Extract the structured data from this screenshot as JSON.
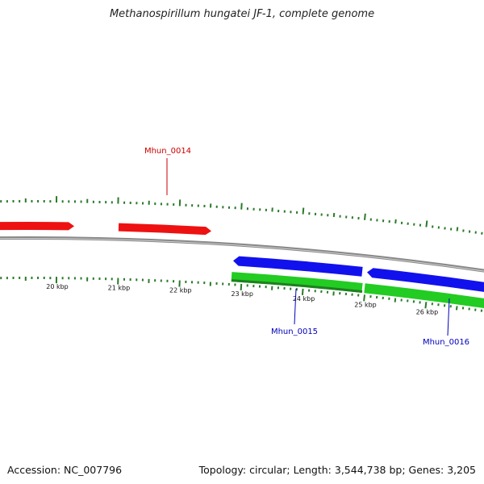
{
  "title": "Methanospirillum hungatei JF-1, complete genome",
  "accession": "Accession: NC_007796",
  "topology": "Topology: circular; Length: 3,544,738 bp; Genes: 3,205",
  "scale_labels": [
    "20 kbp",
    "21 kbp",
    "22 kbp",
    "23 kbp",
    "24 kbp",
    "25 kbp",
    "26 kbp"
  ],
  "colors": {
    "forward_cds": "#ee1111",
    "reverse_cds": "#1111ee",
    "reverse_gene": "#22cc22",
    "backbone": "#888888",
    "ticks": "#2a7a2a",
    "forward_label": "#cc0000",
    "reverse_label": "#0000bb"
  },
  "features": [
    {
      "strand": "forward",
      "label": "Mhun_0014"
    },
    {
      "strand": "reverse",
      "label": "Mhun_0015"
    },
    {
      "strand": "reverse",
      "label": "Mhun_0016"
    }
  ]
}
